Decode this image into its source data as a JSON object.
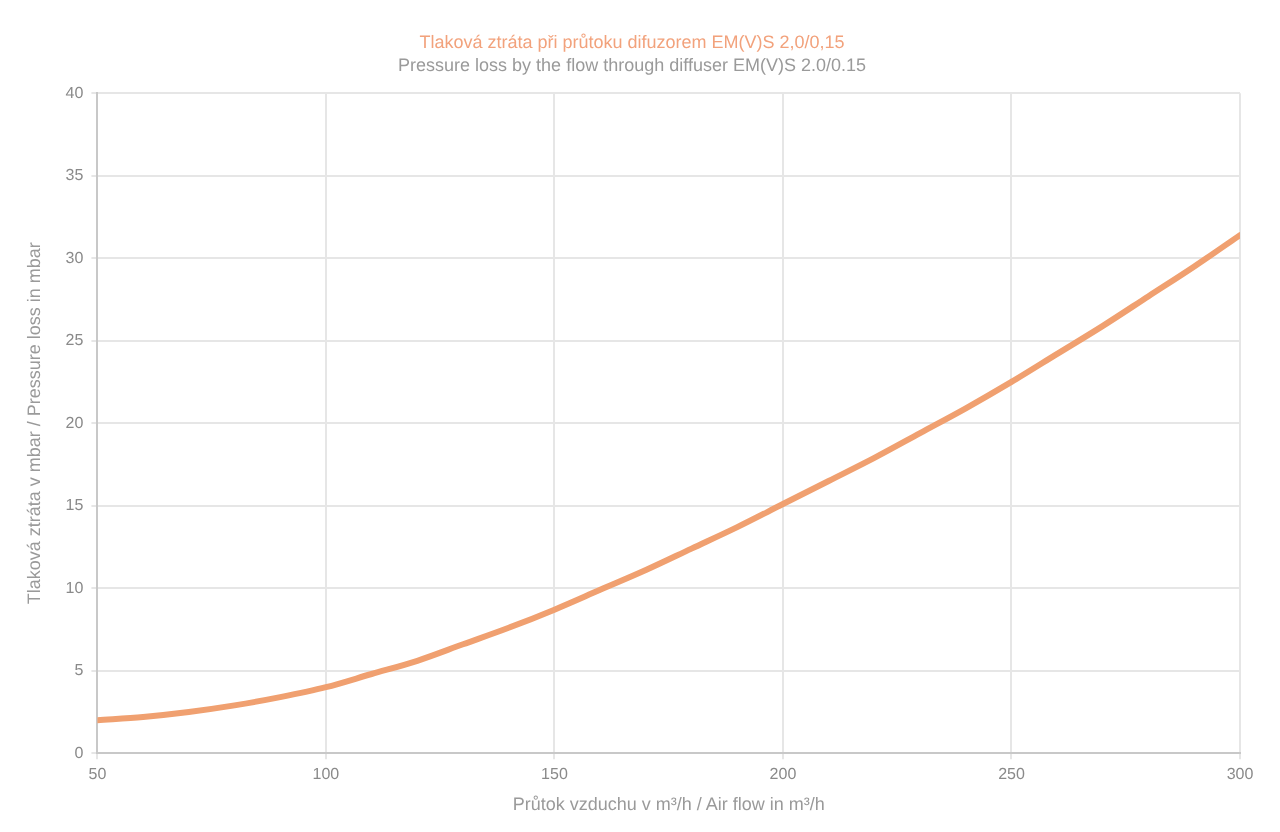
{
  "chart_data": {
    "type": "line",
    "title": "Tlaková ztráta při průtoku difuzorem EM(V)S 2,0/0,15",
    "subtitle": "Pressure loss by the flow through diffuser EM(V)S 2.0/0.15",
    "xlabel": "Průtok vzduchu v m³/h / Air flow in m³/h",
    "ylabel": "Tlaková ztráta v mbar / Pressure loss in mbar",
    "x": [
      50,
      60,
      70,
      80,
      90,
      100,
      110,
      120,
      130,
      140,
      150,
      160,
      170,
      180,
      190,
      200,
      210,
      220,
      230,
      240,
      250,
      260,
      270,
      280,
      290,
      300
    ],
    "values": [
      2.0,
      2.2,
      2.5,
      2.9,
      3.4,
      4.0,
      4.8,
      5.6,
      6.6,
      7.6,
      8.7,
      9.9,
      11.1,
      12.4,
      13.7,
      15.1,
      16.5,
      17.9,
      19.4,
      20.9,
      22.5,
      24.2,
      25.9,
      27.7,
      29.5,
      31.4
    ],
    "color": "#f0a070",
    "xlim": [
      50,
      300
    ],
    "xticks": [
      50,
      100,
      150,
      200,
      250,
      300
    ],
    "ylim": [
      0,
      40
    ],
    "yticks": [
      0,
      5,
      10,
      15,
      20,
      25,
      30,
      35,
      40
    ],
    "grid": true
  }
}
